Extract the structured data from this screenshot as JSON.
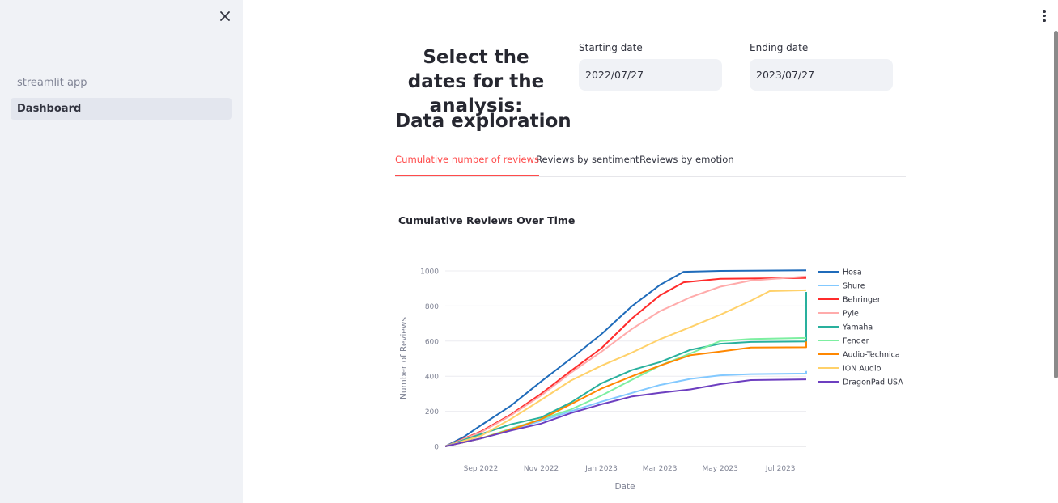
{
  "sidebar": {
    "close_icon": "close-icon",
    "nav": [
      {
        "label": "streamlit app"
      },
      {
        "label": "Dashboard"
      }
    ]
  },
  "header": {
    "menu_icon": "vertical-dots-icon"
  },
  "date_selector": {
    "title": "Select the dates for the analysis:",
    "start_label": "Starting date",
    "start_value": "2022/07/27",
    "end_label": "Ending date",
    "end_value": "2023/07/27"
  },
  "section": {
    "title": "Data exploration",
    "tabs": [
      {
        "label": "Cumulative number of reviews",
        "active": true
      },
      {
        "label": "Reviews by sentiment",
        "active": false
      },
      {
        "label": "Reviews by emotion",
        "active": false
      }
    ]
  },
  "chart_data": {
    "type": "line",
    "title": "Cumulative Reviews Over Time",
    "xlabel": "Date",
    "ylabel": "Number of Reviews",
    "xlim": [
      "2022-07-27",
      "2023-07-27"
    ],
    "ylim": [
      0,
      1000
    ],
    "yticks": [
      0,
      200,
      400,
      600,
      800,
      1000
    ],
    "xticks": [
      {
        "date": "2022-09-01",
        "label": "Sep 2022"
      },
      {
        "date": "2022-11-01",
        "label": "Nov 2022"
      },
      {
        "date": "2023-01-01",
        "label": "Jan 2023"
      },
      {
        "date": "2023-03-01",
        "label": "Mar 2023"
      },
      {
        "date": "2023-05-01",
        "label": "May 2023"
      },
      {
        "date": "2023-07-01",
        "label": "Jul 2023"
      }
    ],
    "grid": true,
    "legend_position": "right",
    "series": [
      {
        "name": "Hosa",
        "color": "#1f6bba",
        "points": [
          [
            "2022-07-27",
            0
          ],
          [
            "2022-08-15",
            55
          ],
          [
            "2022-09-01",
            120
          ],
          [
            "2022-10-01",
            230
          ],
          [
            "2022-11-01",
            370
          ],
          [
            "2022-12-01",
            500
          ],
          [
            "2023-01-01",
            640
          ],
          [
            "2023-02-01",
            800
          ],
          [
            "2023-03-01",
            920
          ],
          [
            "2023-03-25",
            995
          ],
          [
            "2023-05-01",
            1000
          ],
          [
            "2023-07-27",
            1003
          ]
        ]
      },
      {
        "name": "Shure",
        "color": "#83c9ff",
        "points": [
          [
            "2022-07-27",
            0
          ],
          [
            "2022-09-01",
            45
          ],
          [
            "2022-10-01",
            95
          ],
          [
            "2022-11-01",
            145
          ],
          [
            "2022-12-01",
            200
          ],
          [
            "2023-01-01",
            255
          ],
          [
            "2023-02-01",
            305
          ],
          [
            "2023-03-01",
            350
          ],
          [
            "2023-04-01",
            385
          ],
          [
            "2023-05-01",
            405
          ],
          [
            "2023-06-01",
            412
          ],
          [
            "2023-07-27",
            415
          ],
          [
            "2023-07-27",
            430
          ]
        ]
      },
      {
        "name": "Behringer",
        "color": "#ff2b2b",
        "points": [
          [
            "2022-07-27",
            0
          ],
          [
            "2022-09-01",
            85
          ],
          [
            "2022-10-01",
            180
          ],
          [
            "2022-11-01",
            300
          ],
          [
            "2022-12-01",
            430
          ],
          [
            "2023-01-01",
            560
          ],
          [
            "2023-02-01",
            730
          ],
          [
            "2023-03-01",
            860
          ],
          [
            "2023-03-25",
            935
          ],
          [
            "2023-05-01",
            955
          ],
          [
            "2023-07-27",
            960
          ]
        ]
      },
      {
        "name": "Pyle",
        "color": "#ffabab",
        "points": [
          [
            "2022-07-27",
            0
          ],
          [
            "2022-09-01",
            80
          ],
          [
            "2022-10-01",
            175
          ],
          [
            "2022-11-01",
            290
          ],
          [
            "2022-12-01",
            420
          ],
          [
            "2023-01-01",
            540
          ],
          [
            "2023-02-01",
            670
          ],
          [
            "2023-03-01",
            770
          ],
          [
            "2023-04-01",
            850
          ],
          [
            "2023-05-01",
            910
          ],
          [
            "2023-06-01",
            945
          ],
          [
            "2023-07-27",
            968
          ]
        ]
      },
      {
        "name": "Yamaha",
        "color": "#29b09d",
        "points": [
          [
            "2022-07-27",
            0
          ],
          [
            "2022-09-01",
            70
          ],
          [
            "2022-10-01",
            125
          ],
          [
            "2022-11-01",
            165
          ],
          [
            "2022-12-01",
            250
          ],
          [
            "2023-01-01",
            360
          ],
          [
            "2023-02-01",
            435
          ],
          [
            "2023-03-01",
            480
          ],
          [
            "2023-04-01",
            550
          ],
          [
            "2023-05-01",
            585
          ],
          [
            "2023-06-01",
            595
          ],
          [
            "2023-07-27",
            598
          ],
          [
            "2023-07-27",
            880
          ]
        ]
      },
      {
        "name": "Fender",
        "color": "#7defa1",
        "points": [
          [
            "2022-07-27",
            0
          ],
          [
            "2022-09-01",
            45
          ],
          [
            "2022-10-01",
            100
          ],
          [
            "2022-11-01",
            155
          ],
          [
            "2022-12-01",
            210
          ],
          [
            "2023-01-01",
            290
          ],
          [
            "2023-02-01",
            380
          ],
          [
            "2023-03-01",
            460
          ],
          [
            "2023-04-01",
            530
          ],
          [
            "2023-05-01",
            600
          ],
          [
            "2023-06-01",
            612
          ],
          [
            "2023-07-27",
            618
          ]
        ]
      },
      {
        "name": "Audio-Technica",
        "color": "#ff8700",
        "points": [
          [
            "2022-07-27",
            0
          ],
          [
            "2022-09-01",
            45
          ],
          [
            "2022-10-01",
            95
          ],
          [
            "2022-11-01",
            155
          ],
          [
            "2022-12-01",
            240
          ],
          [
            "2023-01-01",
            330
          ],
          [
            "2023-02-01",
            400
          ],
          [
            "2023-03-01",
            460
          ],
          [
            "2023-04-01",
            520
          ],
          [
            "2023-05-01",
            540
          ],
          [
            "2023-06-01",
            563
          ],
          [
            "2023-07-27",
            565
          ],
          [
            "2023-07-27",
            598
          ]
        ]
      },
      {
        "name": "ION Audio",
        "color": "#ffd16a",
        "points": [
          [
            "2022-07-27",
            0
          ],
          [
            "2022-09-01",
            60
          ],
          [
            "2022-10-01",
            155
          ],
          [
            "2022-11-01",
            265
          ],
          [
            "2022-12-01",
            375
          ],
          [
            "2023-01-01",
            460
          ],
          [
            "2023-02-01",
            535
          ],
          [
            "2023-03-01",
            610
          ],
          [
            "2023-04-01",
            680
          ],
          [
            "2023-05-01",
            750
          ],
          [
            "2023-06-01",
            830
          ],
          [
            "2023-06-20",
            885
          ],
          [
            "2023-07-27",
            890
          ]
        ]
      },
      {
        "name": "DragonPad USA",
        "color": "#6d3fc0",
        "points": [
          [
            "2022-07-27",
            0
          ],
          [
            "2022-09-01",
            45
          ],
          [
            "2022-10-01",
            90
          ],
          [
            "2022-11-01",
            130
          ],
          [
            "2022-12-01",
            190
          ],
          [
            "2023-01-01",
            240
          ],
          [
            "2023-02-01",
            285
          ],
          [
            "2023-03-01",
            305
          ],
          [
            "2023-04-01",
            325
          ],
          [
            "2023-05-01",
            355
          ],
          [
            "2023-06-01",
            378
          ],
          [
            "2023-07-27",
            382
          ]
        ]
      }
    ]
  }
}
